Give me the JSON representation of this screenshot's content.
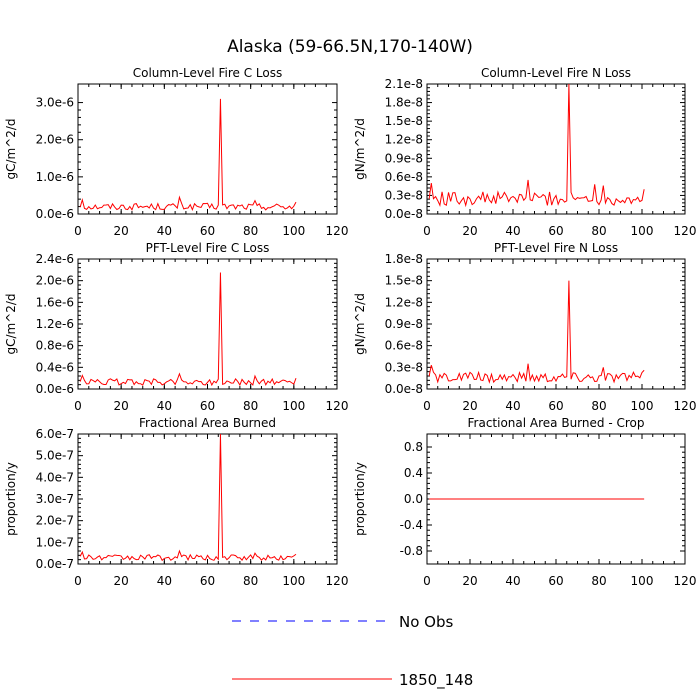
{
  "page_title": "Alaska (59-66.5N,170-140W)",
  "colors": {
    "series_model": "#ff0000",
    "series_obs": "#0000ff",
    "axis": "#000000"
  },
  "legend": {
    "entries": [
      {
        "label": "No Obs",
        "style": "dashed",
        "color": "#0000ff"
      },
      {
        "label": "1850_148",
        "style": "solid",
        "color": "#ff0000"
      }
    ]
  },
  "chart_data": [
    {
      "type": "line",
      "title": "Column-Level Fire C Loss",
      "ylabel": "gC/m^2/d",
      "xlim": [
        0,
        120
      ],
      "ylim": [
        0,
        3.5e-06
      ],
      "x_ticks": [
        "0",
        "20",
        "40",
        "60",
        "80",
        "100",
        "120"
      ],
      "y_ticks": [
        {
          "v": 0,
          "label": "0.0e-6"
        },
        {
          "v": 1e-06,
          "label": "1.0e-6"
        },
        {
          "v": 2e-06,
          "label": "2.0e-6"
        },
        {
          "v": 3e-06,
          "label": "3.0e-6"
        }
      ],
      "base": 2e-07,
      "peaks": [
        [
          66,
          3.1e-06
        ],
        [
          47,
          4.5e-07
        ],
        [
          2,
          3.8e-07
        ],
        [
          82,
          3.6e-07
        ],
        [
          101,
          3.2e-07
        ]
      ],
      "series": [
        {
          "name": "1850_148",
          "color": "#ff0000"
        }
      ]
    },
    {
      "type": "line",
      "title": "Column-Level Fire N Loss",
      "ylabel": "gN/m^2/d",
      "xlim": [
        0,
        120
      ],
      "ylim": [
        0,
        2.1e-08
      ],
      "x_ticks": [
        "0",
        "20",
        "40",
        "60",
        "80",
        "100",
        "120"
      ],
      "y_ticks": [
        {
          "v": 0,
          "label": "0.0e-8"
        },
        {
          "v": 3e-09,
          "label": "0.3e-8"
        },
        {
          "v": 6e-09,
          "label": "0.6e-8"
        },
        {
          "v": 9e-09,
          "label": "0.9e-8"
        },
        {
          "v": 1.2e-08,
          "label": "1.2e-8"
        },
        {
          "v": 1.5e-08,
          "label": "1.5e-8"
        },
        {
          "v": 1.8e-08,
          "label": "1.8e-8"
        },
        {
          "v": 2.1e-08,
          "label": "2.1e-8"
        }
      ],
      "base": 2.5e-09,
      "peaks": [
        [
          66,
          2.1e-08
        ],
        [
          47,
          5.5e-09
        ],
        [
          2,
          5e-09
        ],
        [
          78,
          4.8e-09
        ],
        [
          82,
          4.6e-09
        ],
        [
          101,
          4e-09
        ]
      ],
      "series": [
        {
          "name": "1850_148",
          "color": "#ff0000"
        }
      ]
    },
    {
      "type": "line",
      "title": "PFT-Level Fire C Loss",
      "ylabel": "gC/m^2/d",
      "xlim": [
        0,
        120
      ],
      "ylim": [
        0,
        2.4e-06
      ],
      "x_ticks": [
        "0",
        "20",
        "40",
        "60",
        "80",
        "100",
        "120"
      ],
      "y_ticks": [
        {
          "v": 0,
          "label": "0.0e-6"
        },
        {
          "v": 4e-07,
          "label": "0.4e-6"
        },
        {
          "v": 8e-07,
          "label": "0.8e-6"
        },
        {
          "v": 1.2e-06,
          "label": "1.2e-6"
        },
        {
          "v": 1.6e-06,
          "label": "1.6e-6"
        },
        {
          "v": 2e-06,
          "label": "2.0e-6"
        },
        {
          "v": 2.4e-06,
          "label": "2.4e-6"
        }
      ],
      "base": 1.3e-07,
      "peaks": [
        [
          66,
          2.15e-06
        ],
        [
          47,
          2.8e-07
        ],
        [
          2,
          2.5e-07
        ],
        [
          82,
          2.4e-07
        ],
        [
          101,
          2e-07
        ]
      ],
      "series": [
        {
          "name": "1850_148",
          "color": "#ff0000"
        }
      ]
    },
    {
      "type": "line",
      "title": "PFT-Level Fire N Loss",
      "ylabel": "gN/m^2/d",
      "xlim": [
        0,
        120
      ],
      "ylim": [
        0,
        1.8e-08
      ],
      "x_ticks": [
        "0",
        "20",
        "40",
        "60",
        "80",
        "100",
        "120"
      ],
      "y_ticks": [
        {
          "v": 0,
          "label": "0.0e-8"
        },
        {
          "v": 3e-09,
          "label": "0.3e-8"
        },
        {
          "v": 6e-09,
          "label": "0.6e-8"
        },
        {
          "v": 9e-09,
          "label": "0.9e-8"
        },
        {
          "v": 1.2e-08,
          "label": "1.2e-8"
        },
        {
          "v": 1.5e-08,
          "label": "1.5e-8"
        },
        {
          "v": 1.8e-08,
          "label": "1.8e-8"
        }
      ],
      "base": 1.6e-09,
      "peaks": [
        [
          66,
          1.5e-08
        ],
        [
          47,
          3.5e-09
        ],
        [
          2,
          3.3e-09
        ],
        [
          82,
          3e-09
        ],
        [
          101,
          2.6e-09
        ]
      ],
      "series": [
        {
          "name": "1850_148",
          "color": "#ff0000"
        }
      ]
    },
    {
      "type": "line",
      "title": "Fractional Area Burned",
      "ylabel": "proportion/y",
      "xlim": [
        0,
        120
      ],
      "ylim": [
        0,
        6e-07
      ],
      "x_ticks": [
        "0",
        "20",
        "40",
        "60",
        "80",
        "100",
        "120"
      ],
      "y_ticks": [
        {
          "v": 0,
          "label": "0.0e-7"
        },
        {
          "v": 1e-07,
          "label": "1.0e-7"
        },
        {
          "v": 2e-07,
          "label": "2.0e-7"
        },
        {
          "v": 3e-07,
          "label": "3.0e-7"
        },
        {
          "v": 4e-07,
          "label": "4.0e-7"
        },
        {
          "v": 5e-07,
          "label": "5.0e-7"
        },
        {
          "v": 6e-07,
          "label": "6.0e-7"
        }
      ],
      "base": 3e-08,
      "peaks": [
        [
          66,
          6e-07
        ],
        [
          47,
          6e-08
        ],
        [
          2,
          5.5e-08
        ],
        [
          82,
          5e-08
        ],
        [
          101,
          4.5e-08
        ]
      ],
      "series": [
        {
          "name": "1850_148",
          "color": "#ff0000"
        }
      ]
    },
    {
      "type": "line",
      "title": "Fractional Area Burned - Crop",
      "ylabel": "proportion/y",
      "xlim": [
        0,
        120
      ],
      "ylim": [
        -1,
        1
      ],
      "x_ticks": [
        "0",
        "20",
        "40",
        "60",
        "80",
        "100",
        "120"
      ],
      "y_ticks": [
        {
          "v": -0.8,
          "label": "-0.8"
        },
        {
          "v": -0.4,
          "label": "-0.4"
        },
        {
          "v": 0,
          "label": "0.0"
        },
        {
          "v": 0.4,
          "label": "0.4"
        },
        {
          "v": 0.8,
          "label": "0.8"
        }
      ],
      "base": 0,
      "flat": true,
      "peaks": [],
      "series": [
        {
          "name": "1850_148",
          "color": "#ff0000"
        }
      ]
    }
  ]
}
